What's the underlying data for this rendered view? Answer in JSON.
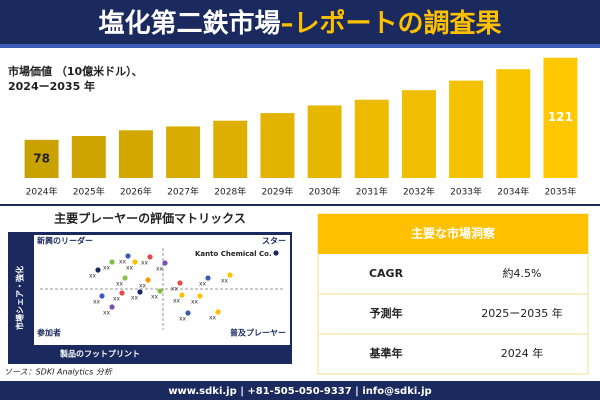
{
  "header": {
    "title_main": "塩化第二鉄市場",
    "title_accent": "–レポートの調査果"
  },
  "chart_data": {
    "type": "bar",
    "subtitle": [
      "市場価値 （10億米ドル）、",
      "2024ー2035 年"
    ],
    "categories": [
      "2024年",
      "2025年",
      "2026年",
      "2027年",
      "2028年",
      "2029年",
      "2030年",
      "2031年",
      "2032年",
      "2033年",
      "2034年",
      "2035年"
    ],
    "values": [
      78,
      80,
      83,
      85,
      88,
      92,
      96,
      99,
      104,
      109,
      115,
      121
    ],
    "value_labels": [
      "78",
      null,
      null,
      null,
      null,
      null,
      null,
      null,
      null,
      null,
      null,
      "121"
    ],
    "colors": [
      "#c9a200",
      "#cda400",
      "#d2a800",
      "#d7ab00",
      "#dcaf00",
      "#e2b300",
      "#e7b700",
      "#ecbb00",
      "#f0be00",
      "#f5c200",
      "#f9c500",
      "#ffc800"
    ],
    "ylim": [
      58,
      124
    ]
  },
  "matrix": {
    "title": "主要プレーヤーの評価マトリックス",
    "quadrants": [
      "新興のリーダー",
      "スター",
      "参加者",
      "普及プレーヤー"
    ],
    "y_label": "市場シェア・強化",
    "x_label": "製品のフットプリント",
    "highlight": "Kanto Chemical Co.",
    "point_labels": [
      "xx",
      "xx",
      "xx",
      "xx",
      "xx",
      "xx",
      "xx",
      "xx",
      "xx",
      "xx",
      "xx",
      "xx",
      "xx",
      "xx",
      "xx",
      "xx",
      "xx",
      "xx",
      "xx",
      "xx"
    ]
  },
  "source": "ソース：SDKI Analytics 分析",
  "table": {
    "title": "主要な市場洞察",
    "rows": [
      [
        "CAGR",
        "約4.5%"
      ],
      [
        "予測年",
        "2025ー2035 年"
      ],
      [
        "基準年",
        "2024 年"
      ]
    ]
  },
  "footer": "www.sdki.jp | +81-505-050-9337 | info@sdki.jp"
}
